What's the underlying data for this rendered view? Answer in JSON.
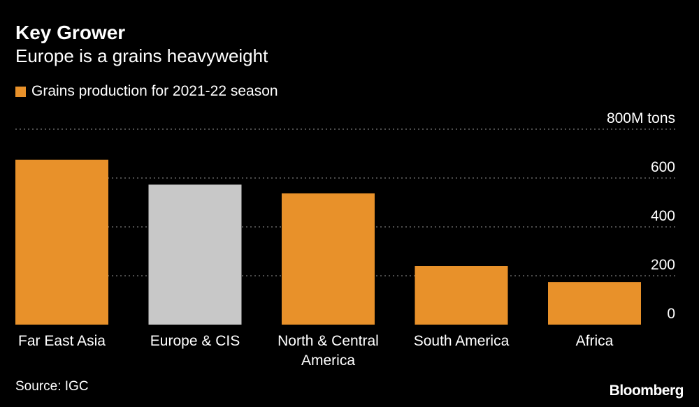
{
  "header": {
    "title": "Key Grower",
    "subtitle": "Europe is a grains heavyweight"
  },
  "legend": {
    "label": "Grains production for 2021-22 season",
    "color": "#E8912A"
  },
  "colors": {
    "default_bar": "#E8912A",
    "highlight_bar": "#C8C8C8",
    "grid": "#7A7A7A",
    "background": "#000000",
    "text": "#FFFFFF"
  },
  "chart_data": {
    "type": "bar",
    "title": "Key Grower",
    "subtitle": "Europe is a grains heavyweight",
    "xlabel": "",
    "ylabel": "",
    "y_unit_label": "800M tons",
    "ylim": [
      0,
      800
    ],
    "yticks": [
      0,
      200,
      400,
      600,
      800
    ],
    "ytick_labels": [
      "0",
      "200",
      "400",
      "600",
      "800M tons"
    ],
    "grid": true,
    "categories": [
      [
        "Far East Asia"
      ],
      [
        "Europe & CIS"
      ],
      [
        "North & Central",
        "America"
      ],
      [
        "South America"
      ],
      [
        "Africa"
      ]
    ],
    "series": [
      {
        "name": "Grains production for 2021-22 season",
        "values": [
          675,
          573,
          537,
          240,
          174
        ]
      }
    ],
    "highlight_index": 1
  },
  "footer": {
    "source": "Source: IGC",
    "brand": "Bloomberg"
  }
}
